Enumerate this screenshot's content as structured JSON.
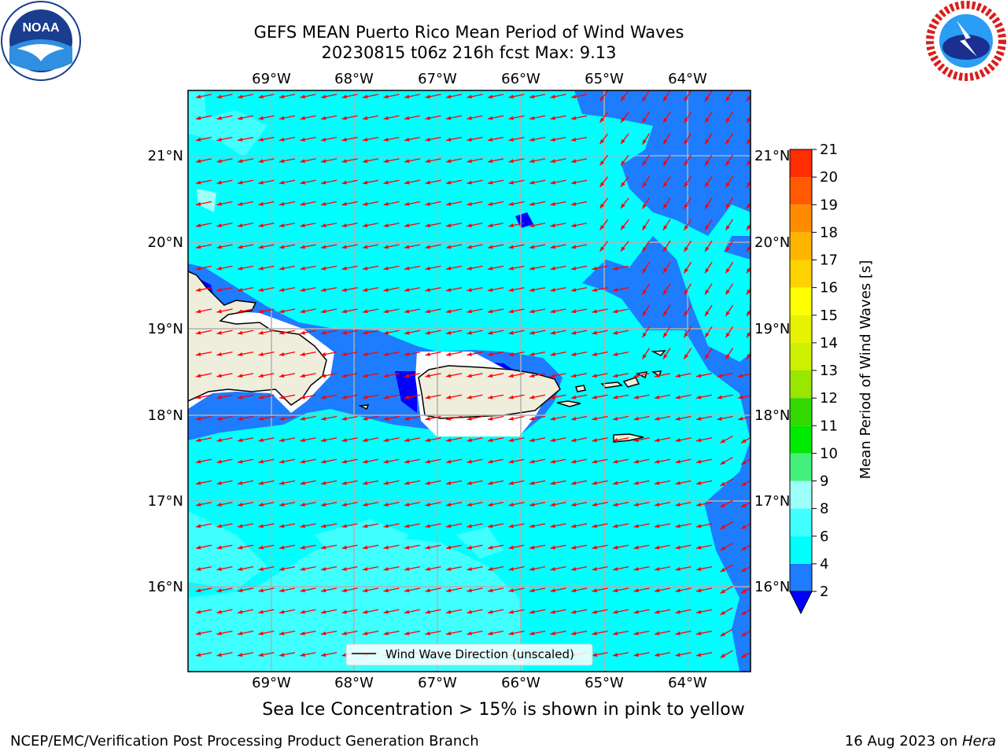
{
  "title_line1": "GEFS MEAN Puerto Rico Mean Period of Wind Waves",
  "title_line2": "20230815 t06z 216h fcst   Max: 9.13",
  "lon_labels": [
    "69°W",
    "68°W",
    "67°W",
    "66°W",
    "65°W",
    "64°W"
  ],
  "lat_labels": [
    "21°N",
    "20°N",
    "19°N",
    "18°N",
    "17°N",
    "16°N"
  ],
  "legend_label": "Wind Wave Direction (unscaled)",
  "colorbar": {
    "label": "Mean Period of Wind Waves [s]",
    "ticks": [
      "2",
      "4",
      "6",
      "8",
      "9",
      "10",
      "11",
      "12",
      "13",
      "14",
      "15",
      "16",
      "17",
      "18",
      "19",
      "20",
      "21"
    ],
    "colors": [
      "#1e7cff",
      "#00ffff",
      "#40ffff",
      "#9dfff9",
      "#44f07c",
      "#00ea00",
      "#33d900",
      "#99e600",
      "#ccf000",
      "#e6f200",
      "#ffff00",
      "#ffd200",
      "#ffb400",
      "#ff8c00",
      "#ff5a00",
      "#ff2d00",
      "#ff0000"
    ],
    "extend_color": "#0000ff"
  },
  "map_colors": {
    "ocean_main": "#00ffff",
    "ocean_light": "#40ffff",
    "ocean_lighter": "#9dfff9",
    "shelf": "#1e7cff",
    "deep": "#0000ff",
    "land": "#efeddc",
    "arrow": "#ff0000",
    "grid": "#b0b0b0"
  },
  "caption": "Sea Ice Concentration > 15% is shown in pink to yellow",
  "footer_left": "NCEP/EMC/Verification Post Processing Product Generation Branch",
  "footer_right_prefix": "16 Aug 2023 on ",
  "footer_right_host": "Hera",
  "logos": {
    "left": "noaa-logo",
    "right": "nws-logo"
  }
}
